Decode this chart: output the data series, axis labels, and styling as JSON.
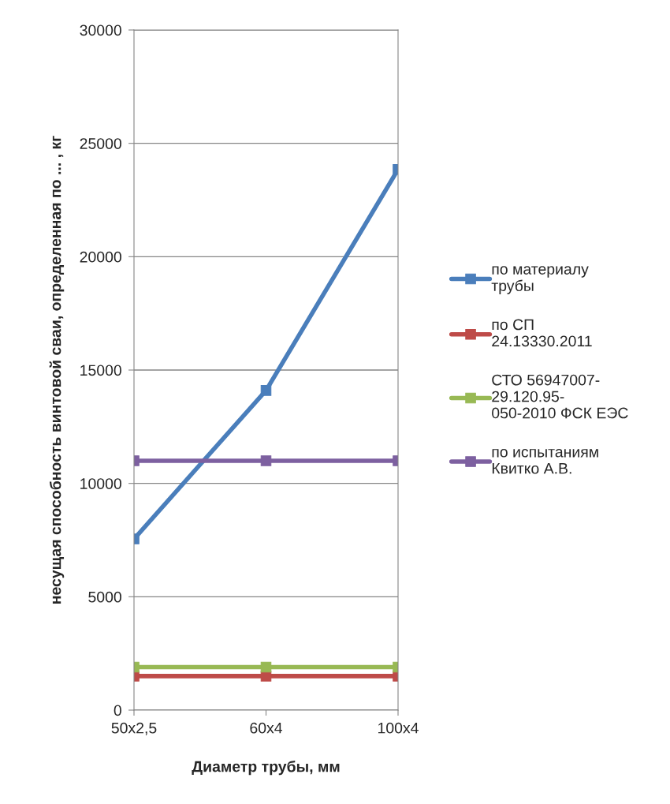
{
  "chart_data": {
    "type": "line",
    "xlabel": "Диаметр трубы, мм",
    "ylabel": "несущая способность винтовой сваи, определенная по ... , кг",
    "categories": [
      "50x2,5",
      "60x4",
      "100x4"
    ],
    "series": [
      {
        "name": "по материалу\nтрубы",
        "color": "#4a7ebb",
        "values": [
          7550,
          14100,
          23850
        ]
      },
      {
        "name": "по СП\n24.13330.2011",
        "color": "#be4b48",
        "values": [
          1500,
          1500,
          1500
        ]
      },
      {
        "name": "СТО 56947007-\n29.120.95-\n050-2010 ФСК ЕЭС",
        "color": "#98b954",
        "values": [
          1900,
          1900,
          1900
        ]
      },
      {
        "name": "по испытаниям\nКвитко А.В.",
        "color": "#7d60a0",
        "values": [
          11000,
          11000,
          11000
        ]
      }
    ],
    "ylim": [
      0,
      30000
    ],
    "yticks": [
      0,
      5000,
      10000,
      15000,
      20000,
      25000,
      30000
    ],
    "grid": "y",
    "legend": "right",
    "marker": "square",
    "line_style": "solid"
  }
}
